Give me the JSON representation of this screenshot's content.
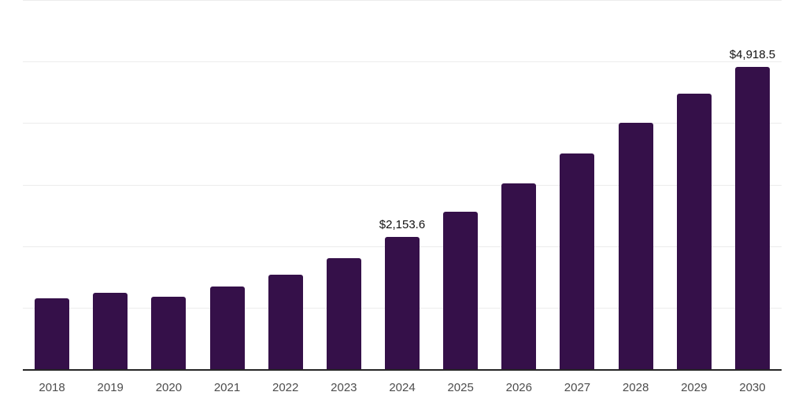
{
  "chart_data": {
    "type": "bar",
    "title": "",
    "xlabel": "",
    "ylabel": "",
    "categories": [
      "2018",
      "2019",
      "2020",
      "2021",
      "2022",
      "2023",
      "2024",
      "2025",
      "2026",
      "2027",
      "2028",
      "2029",
      "2030"
    ],
    "values": [
      1164,
      1253,
      1190,
      1356,
      1548,
      1816,
      2153.6,
      2571,
      3031,
      3517,
      4003,
      4477,
      4918.5
    ],
    "data_labels": {
      "2024": "$2,153.6",
      "2030": "$4,918.5"
    },
    "ylim": [
      0,
      6000
    ],
    "gridline_step": 1000,
    "grid": true,
    "legend_position": "none",
    "colors": {
      "bar": "#351049",
      "gridline": "#ececec",
      "axis_line": "#262626",
      "x_tick_label": "#4d4d4d",
      "data_label": "#111111",
      "background": "#ffffff"
    }
  }
}
